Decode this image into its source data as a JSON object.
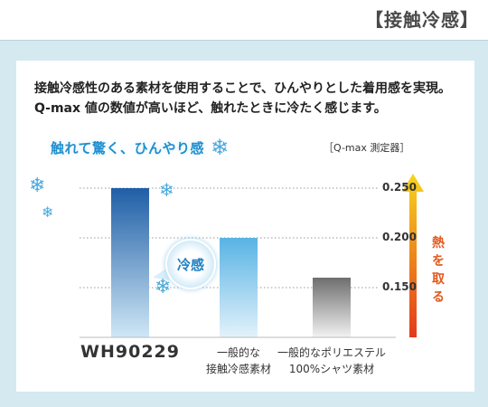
{
  "heading": "【接触冷感】",
  "intro": {
    "line1": "接触冷感性のある素材を使用することで、ひんやりとした着用感を実現。",
    "line2": "Q-max 値の数値が高いほど、触れたときに冷たく感じます。"
  },
  "tagline": "触れて驚く、ひんやり感",
  "bubble_label": "冷感",
  "arrow_label": "熱を取る",
  "icons": [
    "snowflake-icon"
  ],
  "colors": {
    "panel": "#d5e9f1",
    "bar_main_top": "#1f5ea6",
    "bar_mid_top": "#58b3e4",
    "bar_gray_top": "#6e6e6e",
    "arrow_top": "#f7d51d",
    "arrow_bottom": "#e33a1c"
  },
  "chart_data": {
    "type": "bar",
    "categories": [
      "WH90229",
      "一般的な\n接触冷感素材",
      "一般的なポリエステル\n100%シャツ素材"
    ],
    "category_lines": [
      [
        "WH90229"
      ],
      [
        "一般的な",
        "接触冷感素材"
      ],
      [
        "一般的なポリエステル",
        "100%シャツ素材"
      ]
    ],
    "values": [
      0.25,
      0.2,
      0.16
    ],
    "unit_label": "［Q-max 測定器］",
    "yticks": [
      "0.250",
      "0.200",
      "0.150"
    ],
    "ylim": [
      0.1,
      0.25
    ],
    "grid": true
  }
}
